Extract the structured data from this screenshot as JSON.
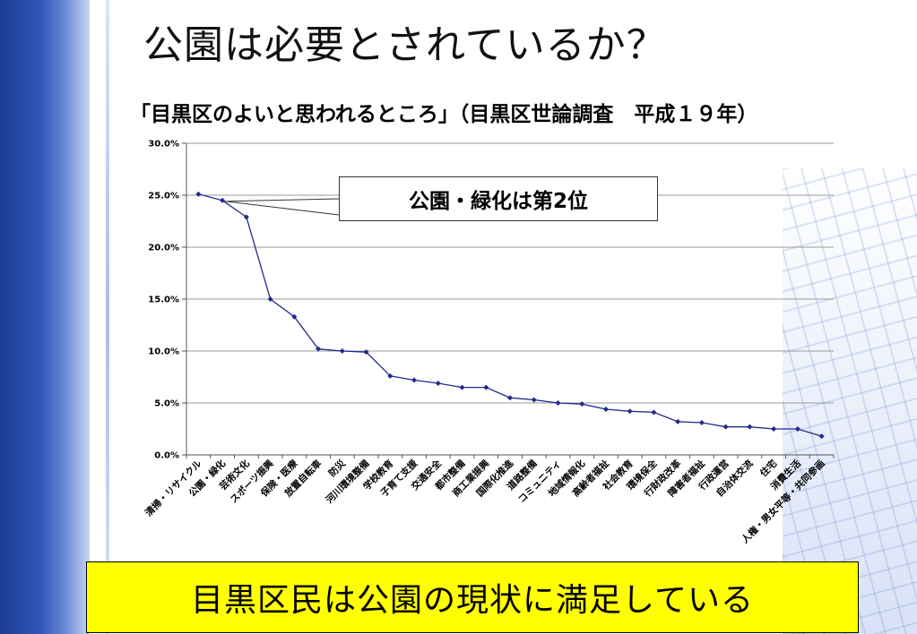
{
  "slide": {
    "title": "公園は必要とされているか？",
    "caption": "「目黒区のよいと思われるところ」（目黒区世論調査　平成１９年）",
    "callout": "公園・緑化は第2位",
    "banner": "目黒区民は公園の現状に満足している"
  },
  "colors": {
    "line": "#1f2a8a",
    "grid": "#9a9a9a",
    "banner": "#ffff00"
  },
  "chart_data": {
    "type": "line",
    "categories": [
      "清掃・リサイクル",
      "公園・緑化",
      "芸術文化",
      "スポーツ振興",
      "保険・医療",
      "放置自転車",
      "防災",
      "河川環境整備",
      "学校教育",
      "子育て支援",
      "交通安全",
      "都市整備",
      "商工業振興",
      "国際化推進",
      "道路整備",
      "コミュニティ",
      "地域情報化",
      "高齢者福祉",
      "社会教育",
      "環境保全",
      "行財政改革",
      "障害者福祉",
      "行政運営",
      "自治体交流",
      "住宅",
      "消費生活",
      "人権・男女平等・共同参画"
    ],
    "values": [
      25.1,
      24.5,
      22.9,
      15.0,
      13.3,
      10.2,
      10.0,
      9.9,
      7.6,
      7.2,
      6.9,
      6.5,
      6.5,
      5.5,
      5.3,
      5.0,
      4.9,
      4.4,
      4.2,
      4.1,
      3.2,
      3.1,
      2.7,
      2.7,
      2.5,
      2.5,
      1.8
    ],
    "yticks": [
      "0.0%",
      "5.0%",
      "10.0%",
      "15.0%",
      "20.0%",
      "25.0%",
      "30.0%"
    ],
    "ylim": [
      0,
      30
    ],
    "grid": true,
    "legend": "none"
  }
}
